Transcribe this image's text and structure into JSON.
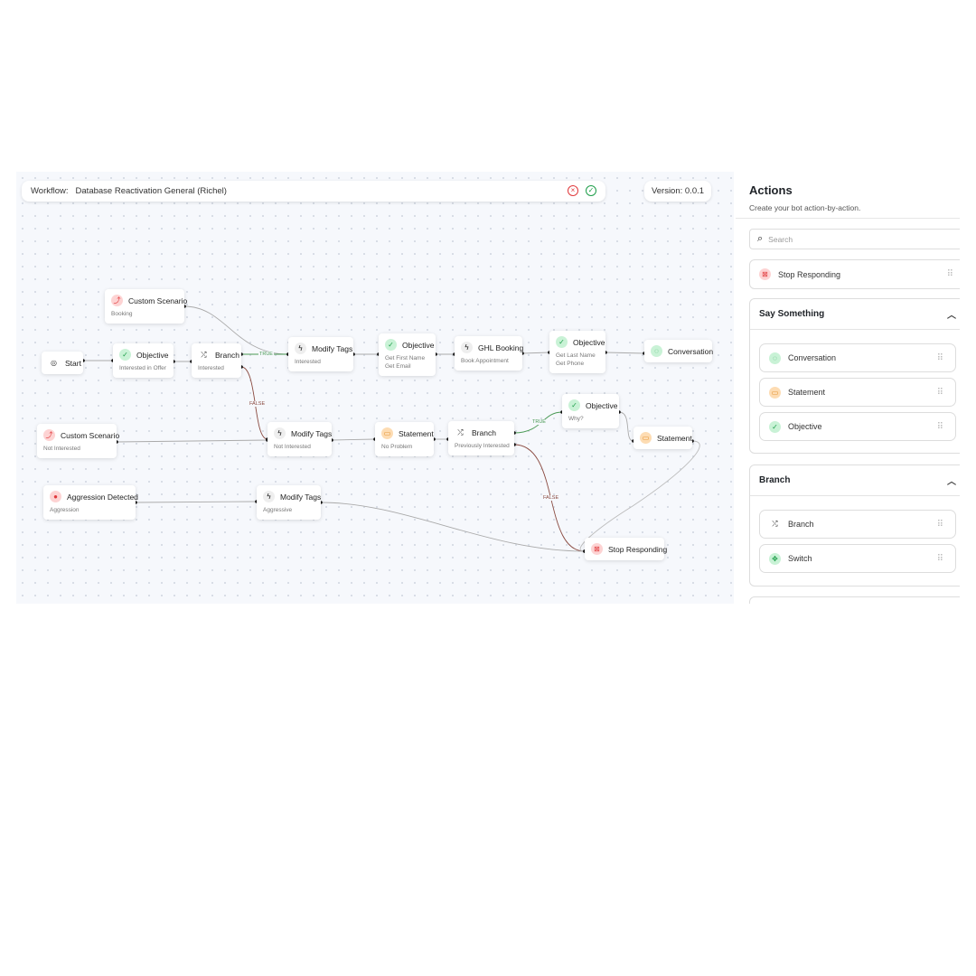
{
  "header": {
    "workflow_label": "Workflow:",
    "workflow_name": "Database Reactivation General (Richel)",
    "cancel_icon": "x-circle-icon",
    "confirm_icon": "check-circle-icon",
    "version": "Version: 0.0.1"
  },
  "colors": {
    "accent_green": "#1e9e4a",
    "accent_red": "#e0383b",
    "accent_orange": "#e08a1e"
  },
  "nodes": [
    {
      "id": "cs-booking",
      "type": "custom-scenario",
      "title": "Custom Scenario",
      "sub": [
        "Booking"
      ]
    },
    {
      "id": "start",
      "type": "start",
      "title": "Start",
      "sub": []
    },
    {
      "id": "obj-interested",
      "type": "objective",
      "title": "Objective",
      "sub": [
        "Interested in Offer"
      ]
    },
    {
      "id": "branch-interested",
      "type": "branch",
      "title": "Branch",
      "sub": [
        "Interested"
      ]
    },
    {
      "id": "tags-interested",
      "type": "modify-tags",
      "title": "Modify Tags",
      "sub": [
        "Interested"
      ]
    },
    {
      "id": "obj-first",
      "type": "objective",
      "title": "Objective",
      "sub": [
        "Get First Name",
        "Get Email"
      ]
    },
    {
      "id": "ghl",
      "type": "modify-tags",
      "title": "GHL Booking",
      "sub": [
        "Book Appointment"
      ]
    },
    {
      "id": "obj-last",
      "type": "objective",
      "title": "Objective",
      "sub": [
        "Get Last Name",
        "Get Phone"
      ]
    },
    {
      "id": "conversation",
      "type": "conversation",
      "title": "Conversation",
      "sub": []
    },
    {
      "id": "cs-not",
      "type": "custom-scenario",
      "title": "Custom Scenario",
      "sub": [
        "Not Interested"
      ]
    },
    {
      "id": "tags-not",
      "type": "modify-tags",
      "title": "Modify Tags",
      "sub": [
        "Not Interested"
      ]
    },
    {
      "id": "stmt-noproblem",
      "type": "statement",
      "title": "Statement",
      "sub": [
        "No Problem"
      ]
    },
    {
      "id": "branch-prev",
      "type": "branch",
      "title": "Branch",
      "sub": [
        "Previously Interested"
      ]
    },
    {
      "id": "obj-why",
      "type": "objective",
      "title": "Objective",
      "sub": [
        "Why?"
      ]
    },
    {
      "id": "stmt-2",
      "type": "statement",
      "title": "Statement",
      "sub": []
    },
    {
      "id": "aggr",
      "type": "aggression",
      "title": "Aggression Detected",
      "sub": [
        "Aggression"
      ]
    },
    {
      "id": "tags-aggr",
      "type": "modify-tags",
      "title": "Modify Tags",
      "sub": [
        "Aggressive"
      ]
    },
    {
      "id": "stop",
      "type": "stop",
      "title": "Stop Responding",
      "sub": []
    }
  ],
  "edge_labels": {
    "true1": "TRUE",
    "false1": "FALSE",
    "true2": "TRUE",
    "false2": "FALSE"
  },
  "panel": {
    "title": "Actions",
    "description": "Create your bot action-by-action.",
    "search_placeholder": "Search",
    "stop_item": "Stop Responding",
    "sections": [
      {
        "title": "Say Something",
        "items": [
          "Conversation",
          "Statement",
          "Objective"
        ]
      },
      {
        "title": "Branch",
        "items": [
          "Branch",
          "Switch"
        ]
      }
    ]
  }
}
